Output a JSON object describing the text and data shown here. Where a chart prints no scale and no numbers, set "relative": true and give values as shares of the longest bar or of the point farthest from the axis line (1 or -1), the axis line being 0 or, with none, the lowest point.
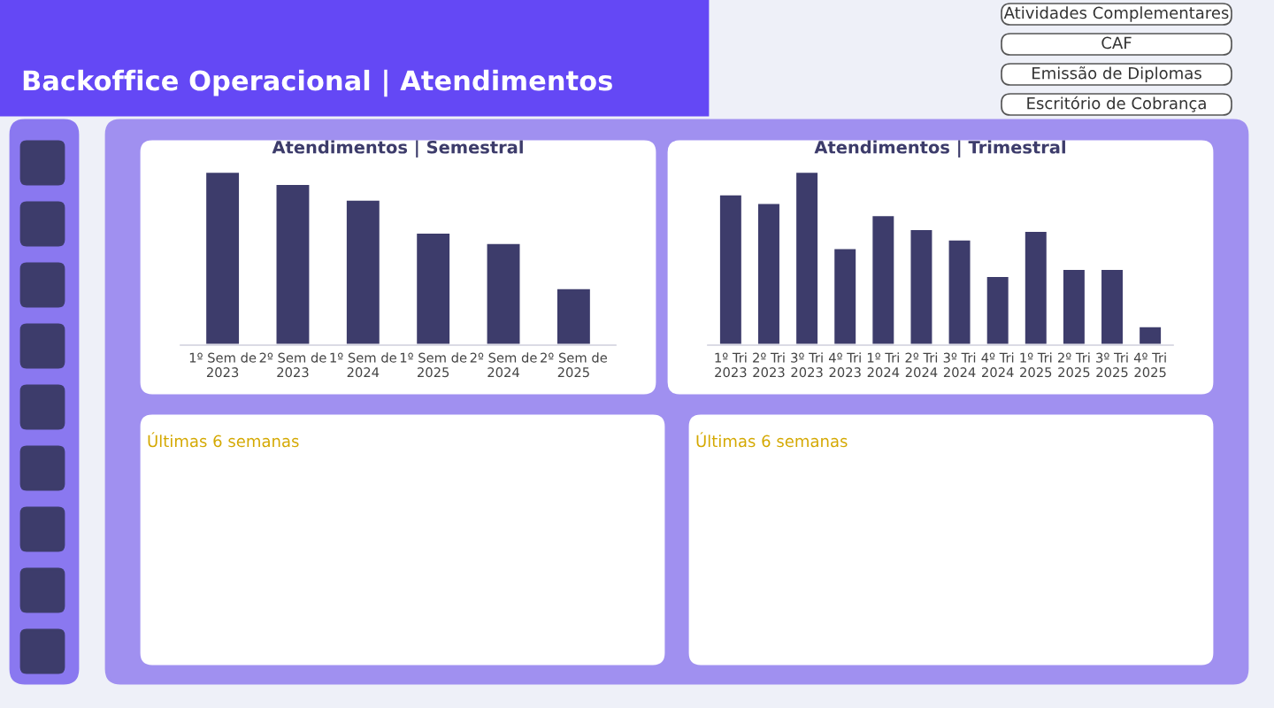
{
  "chart_data": [
    {
      "type": "other",
      "title": "Backoffice Operacional | Atendimentos",
      "annotations": [
        "Atividades Complementares",
        "CAF",
        "Emissão de Diplomas",
        "Escritório de Cobrança"
      ]
    },
    {
      "type": "bar",
      "title": "Atendimentos | Semestral",
      "relative": true,
      "color": "#3d3c6b",
      "categories": [
        "1º Sem de 2023",
        "2º Sem de 2023",
        "1º Sem de 2024",
        "1º Sem de 2025",
        "2º Sem de 2024",
        "2º Sem de 2025"
      ],
      "values": [
        1,
        0.93,
        0.84,
        0.65,
        0.59,
        0.33
      ]
    },
    {
      "type": "bar",
      "title": "Atendimentos | Trimestral",
      "relative": true,
      "color": "#3d3c6b",
      "categories": [
        "1º Tri 2023",
        "2º Tri 2023",
        "3º Tri 2023",
        "4º Tri 2023",
        "1º Tri 2024",
        "2º Tri 2024",
        "3º Tri 2024",
        "4º Tri 2024",
        "1º Tri 2025",
        "2º Tri 2025",
        "3º Tri 2025",
        "4º Tri 2025"
      ],
      "values": [
        0.87,
        0.82,
        1,
        0.56,
        0.75,
        0.67,
        0.61,
        0.4,
        0.66,
        0.44,
        0.44,
        0.11
      ]
    },
    {
      "type": "other",
      "title": "Últimas 6 semanas"
    },
    {
      "type": "other",
      "title": "Últimas 6 semanas"
    }
  ]
}
